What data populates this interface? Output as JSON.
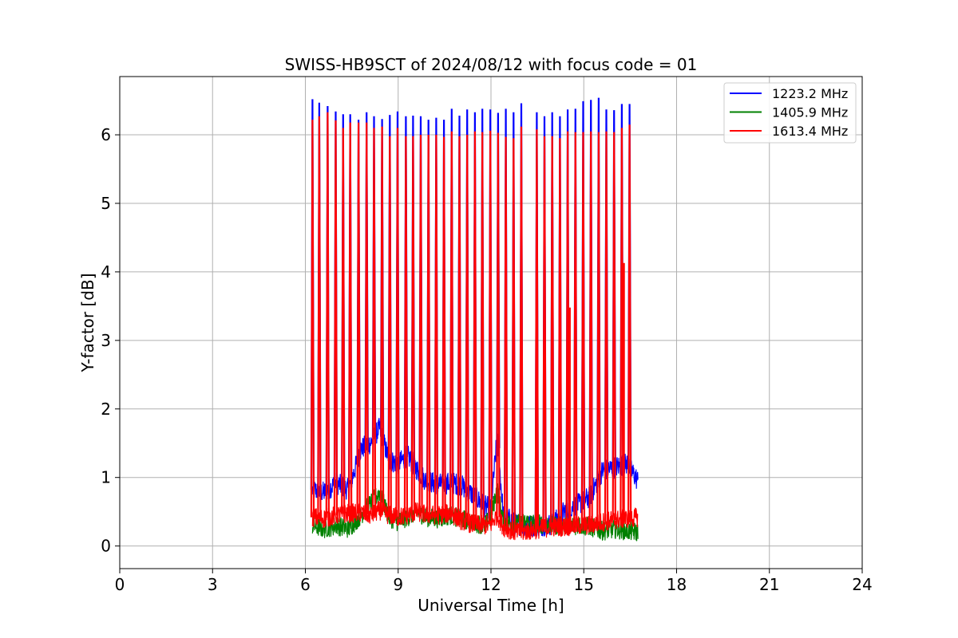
{
  "chart_data": {
    "type": "line",
    "title": "SWISS-HB9SCT of 2024/08/12 with focus code = 01",
    "xlabel": "Universal Time [h]",
    "ylabel": "Y-factor [dB]",
    "xlim": [
      0,
      24
    ],
    "ylim": [
      -0.33,
      6.85
    ],
    "xticks": [
      0,
      3,
      6,
      9,
      12,
      15,
      18,
      21,
      24
    ],
    "yticks": [
      0,
      1,
      2,
      3,
      4,
      5,
      6
    ],
    "grid": true,
    "legend_position": "top-right",
    "series": [
      {
        "name": "1223.2 MHz",
        "color": "#0000ff",
        "baseline_points": [
          [
            6.23,
            0.82
          ],
          [
            6.6,
            0.78
          ],
          [
            7.0,
            0.92
          ],
          [
            7.4,
            0.82
          ],
          [
            7.8,
            1.42
          ],
          [
            8.1,
            1.5
          ],
          [
            8.4,
            1.72
          ],
          [
            8.7,
            1.25
          ],
          [
            9.0,
            1.2
          ],
          [
            9.3,
            1.32
          ],
          [
            9.6,
            1.12
          ],
          [
            9.9,
            0.95
          ],
          [
            10.3,
            0.9
          ],
          [
            10.7,
            0.92
          ],
          [
            11.0,
            0.9
          ],
          [
            11.4,
            0.75
          ],
          [
            11.8,
            0.58
          ],
          [
            12.0,
            0.55
          ],
          [
            12.2,
            1.6
          ],
          [
            12.4,
            0.45
          ],
          [
            12.8,
            0.32
          ],
          [
            13.2,
            0.3
          ],
          [
            13.6,
            0.3
          ],
          [
            14.0,
            0.32
          ],
          [
            14.4,
            0.52
          ],
          [
            14.8,
            0.6
          ],
          [
            15.2,
            0.72
          ],
          [
            15.6,
            1.1
          ],
          [
            16.0,
            1.15
          ],
          [
            16.4,
            1.2
          ],
          [
            16.75,
            0.95
          ]
        ],
        "spike_times": [
          6.23,
          6.45,
          6.72,
          6.98,
          7.22,
          7.45,
          7.72,
          7.98,
          8.22,
          8.48,
          8.73,
          8.98,
          9.25,
          9.48,
          9.73,
          9.98,
          10.23,
          10.48,
          10.73,
          10.98,
          11.23,
          11.48,
          11.72,
          11.98,
          12.23,
          12.48,
          12.73,
          12.98,
          13.48,
          13.73,
          13.98,
          14.23,
          14.48,
          14.73,
          14.98,
          15.23,
          15.48,
          15.73,
          15.98,
          16.23,
          16.48
        ],
        "spike_peaks": [
          6.52,
          6.47,
          6.42,
          6.34,
          6.3,
          6.3,
          6.22,
          6.33,
          6.27,
          6.23,
          6.29,
          6.34,
          6.27,
          6.28,
          6.27,
          6.22,
          6.25,
          6.22,
          6.38,
          6.28,
          6.37,
          6.33,
          6.38,
          6.37,
          6.32,
          6.38,
          6.33,
          6.46,
          6.33,
          6.27,
          6.33,
          6.27,
          6.37,
          6.38,
          6.49,
          6.51,
          6.54,
          6.37,
          6.36,
          6.45,
          6.45
        ]
      },
      {
        "name": "1405.9 MHz",
        "color": "#008000",
        "baseline_points": [
          [
            6.23,
            0.3
          ],
          [
            6.6,
            0.25
          ],
          [
            7.0,
            0.3
          ],
          [
            7.4,
            0.25
          ],
          [
            7.8,
            0.45
          ],
          [
            8.1,
            0.62
          ],
          [
            8.4,
            0.78
          ],
          [
            8.7,
            0.42
          ],
          [
            9.0,
            0.35
          ],
          [
            9.3,
            0.42
          ],
          [
            9.6,
            0.5
          ],
          [
            9.9,
            0.42
          ],
          [
            10.3,
            0.4
          ],
          [
            10.7,
            0.45
          ],
          [
            11.0,
            0.4
          ],
          [
            11.4,
            0.35
          ],
          [
            11.8,
            0.3
          ],
          [
            12.0,
            0.42
          ],
          [
            12.2,
            0.85
          ],
          [
            12.4,
            0.35
          ],
          [
            12.8,
            0.32
          ],
          [
            13.2,
            0.35
          ],
          [
            13.6,
            0.32
          ],
          [
            14.0,
            0.3
          ],
          [
            14.4,
            0.3
          ],
          [
            14.8,
            0.3
          ],
          [
            15.2,
            0.28
          ],
          [
            15.6,
            0.22
          ],
          [
            16.0,
            0.25
          ],
          [
            16.4,
            0.22
          ],
          [
            16.75,
            0.2
          ]
        ]
      },
      {
        "name": "1613.4 MHz",
        "color": "#ff0000",
        "baseline_points": [
          [
            6.23,
            0.42
          ],
          [
            6.6,
            0.4
          ],
          [
            7.0,
            0.45
          ],
          [
            7.4,
            0.48
          ],
          [
            7.8,
            0.48
          ],
          [
            8.1,
            0.45
          ],
          [
            8.4,
            0.52
          ],
          [
            8.7,
            0.45
          ],
          [
            9.0,
            0.42
          ],
          [
            9.3,
            0.45
          ],
          [
            9.6,
            0.5
          ],
          [
            9.9,
            0.46
          ],
          [
            10.3,
            0.45
          ],
          [
            10.7,
            0.48
          ],
          [
            11.0,
            0.38
          ],
          [
            11.4,
            0.32
          ],
          [
            11.8,
            0.3
          ],
          [
            12.0,
            0.32
          ],
          [
            12.2,
            0.45
          ],
          [
            12.4,
            0.28
          ],
          [
            12.8,
            0.2
          ],
          [
            13.2,
            0.22
          ],
          [
            13.6,
            0.25
          ],
          [
            14.0,
            0.28
          ],
          [
            14.4,
            0.28
          ],
          [
            14.8,
            0.3
          ],
          [
            15.2,
            0.3
          ],
          [
            15.6,
            0.35
          ],
          [
            16.0,
            0.38
          ],
          [
            16.4,
            0.4
          ],
          [
            16.75,
            0.42
          ]
        ],
        "spike_times": [
          6.23,
          6.45,
          6.72,
          6.98,
          7.22,
          7.45,
          7.72,
          7.98,
          8.22,
          8.48,
          8.73,
          8.98,
          9.25,
          9.48,
          9.73,
          9.98,
          10.23,
          10.48,
          10.73,
          10.98,
          11.23,
          11.48,
          11.72,
          11.98,
          12.23,
          12.48,
          12.73,
          12.98,
          13.48,
          13.73,
          13.98,
          14.23,
          14.48,
          14.73,
          14.98,
          15.23,
          15.48,
          15.73,
          15.98,
          16.23,
          16.48
        ],
        "spike_peaks": [
          6.22,
          6.27,
          6.33,
          6.21,
          6.1,
          6.18,
          6.18,
          6.18,
          6.1,
          6.12,
          5.98,
          6.1,
          5.98,
          5.98,
          6.0,
          6.0,
          6.0,
          5.97,
          6.05,
          5.98,
          6.0,
          6.05,
          6.04,
          6.06,
          6.03,
          5.97,
          5.95,
          6.12,
          6.08,
          5.98,
          5.98,
          5.95,
          6.05,
          6.04,
          6.04,
          6.05,
          6.04,
          6.05,
          6.04,
          6.1,
          6.15
        ],
        "extra_spikes": [
          [
            13.48,
            4.05
          ],
          [
            14.55,
            3.48
          ],
          [
            16.3,
            4.13
          ]
        ]
      }
    ]
  }
}
